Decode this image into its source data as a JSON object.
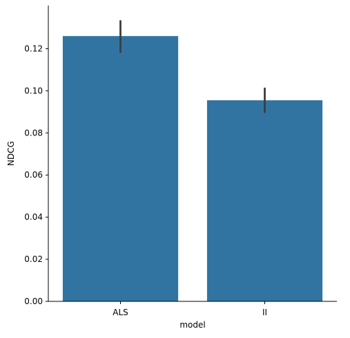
{
  "chart_data": {
    "type": "bar",
    "categories": [
      "ALS",
      "II"
    ],
    "values": [
      0.126,
      0.0955
    ],
    "error_bars": [
      [
        0.118,
        0.1335
      ],
      [
        0.0895,
        0.1015
      ]
    ],
    "xlabel": "model",
    "ylabel": "NDCG",
    "ylim": [
      0,
      0.1405
    ],
    "yticks": [
      0.0,
      0.02,
      0.04,
      0.06,
      0.08,
      0.1,
      0.12
    ],
    "ytick_labels": [
      "0.00",
      "0.02",
      "0.04",
      "0.06",
      "0.08",
      "0.10",
      "0.12"
    ],
    "grid": false,
    "colors": {
      "bar": "#3274a1",
      "error": "#3d3d3d",
      "axis": "#000000"
    }
  }
}
